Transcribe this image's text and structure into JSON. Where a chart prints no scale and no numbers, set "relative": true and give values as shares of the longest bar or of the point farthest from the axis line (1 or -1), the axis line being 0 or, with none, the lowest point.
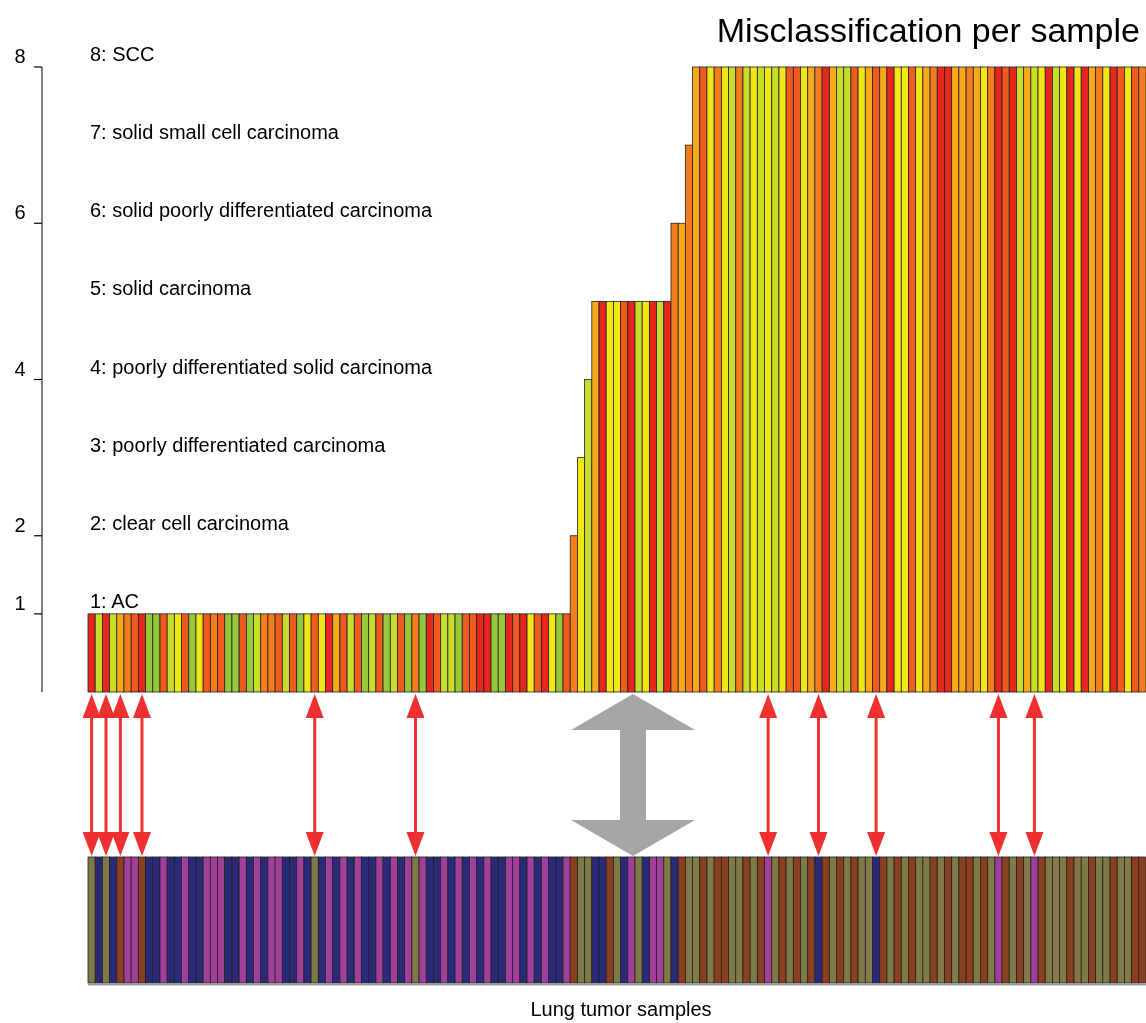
{
  "chart_data": [
    {
      "type": "bar",
      "title": "Misclassification per sample",
      "categories": [
        null,
        null,
        null,
        null,
        null,
        null,
        null,
        null,
        null,
        null,
        null,
        null,
        null,
        null,
        null,
        null,
        null,
        null,
        null,
        null,
        null,
        null,
        null,
        null,
        null,
        null,
        null,
        null,
        null,
        null,
        null,
        null,
        null,
        null,
        null,
        null,
        null,
        null,
        null,
        null,
        null,
        null,
        null,
        null,
        null,
        null,
        null,
        null,
        null,
        null,
        null,
        null,
        null,
        null,
        null,
        null,
        null,
        null,
        null,
        null,
        null,
        null,
        null,
        null,
        null,
        null,
        null,
        null,
        null,
        null,
        null,
        null,
        null,
        null,
        null,
        null,
        null,
        null,
        null,
        null,
        null,
        null,
        null,
        null,
        null,
        null,
        null,
        null,
        null,
        null,
        null,
        null,
        null,
        null,
        null,
        null,
        null,
        null,
        null,
        null,
        null,
        null,
        null,
        null,
        null,
        null,
        null,
        null,
        null,
        null,
        null,
        null,
        null,
        null,
        null,
        null,
        null,
        null,
        null,
        null,
        null,
        null,
        null,
        null,
        null,
        null,
        null,
        null,
        null,
        null,
        null,
        null,
        null,
        null,
        null,
        null,
        null,
        null,
        null,
        null,
        null,
        null,
        null,
        null,
        null,
        null,
        null
      ],
      "values": [
        1,
        1,
        1,
        1,
        1,
        1,
        1,
        1,
        1,
        1,
        1,
        1,
        1,
        1,
        1,
        1,
        1,
        1,
        1,
        1,
        1,
        1,
        1,
        1,
        1,
        1,
        1,
        1,
        1,
        1,
        1,
        1,
        1,
        1,
        1,
        1,
        1,
        1,
        1,
        1,
        1,
        1,
        1,
        1,
        1,
        1,
        1,
        1,
        1,
        1,
        1,
        1,
        1,
        1,
        1,
        1,
        1,
        1,
        1,
        1,
        1,
        1,
        1,
        1,
        1,
        1,
        1,
        2,
        3,
        4,
        5,
        5,
        5,
        5,
        5,
        5,
        5,
        5,
        5,
        5,
        5,
        6,
        6,
        7,
        8,
        8,
        8,
        8,
        8,
        8,
        8,
        8,
        8,
        8,
        8,
        8,
        8,
        8,
        8,
        8,
        8,
        8,
        8,
        8,
        8,
        8,
        8,
        8,
        8,
        8,
        8,
        8,
        8,
        8,
        8,
        8,
        8,
        8,
        8,
        8,
        8,
        8,
        8,
        8,
        8,
        8,
        8,
        8,
        8,
        8,
        8,
        8,
        8,
        8,
        8,
        8,
        8,
        8,
        8,
        8,
        8,
        8,
        8,
        8,
        8,
        8,
        8
      ],
      "colors": [
        "#e8261e",
        "#c8dc2a",
        "#e8261e",
        "#c8dc2a",
        "#f8a91a",
        "#f57d1e",
        "#f05a1e",
        "#e8261e",
        "#96c83c",
        "#96c83c",
        "#f05a1e",
        "#c8dc2a",
        "#f2e614",
        "#f05a1e",
        "#96c83c",
        "#f2e614",
        "#f05a1e",
        "#f57d1e",
        "#f05a1e",
        "#96c83c",
        "#96c83c",
        "#f05a1e",
        "#96c83c",
        "#c8dc2a",
        "#f57d1e",
        "#f57d1e",
        "#f05a1e",
        "#c8dc2a",
        "#f05a1e",
        "#96c83c",
        "#f2e614",
        "#f05a1e",
        "#f2e614",
        "#e8261e",
        "#f8a91a",
        "#f05a1e",
        "#c8dc2a",
        "#f05a1e",
        "#96c83c",
        "#c8dc2a",
        "#f05a1e",
        "#96c83c",
        "#c8dc2a",
        "#f05a1e",
        "#96c83c",
        "#f57d1e",
        "#96c83c",
        "#e8261e",
        "#f05a1e",
        "#c8dc2a",
        "#c8dc2a",
        "#96c83c",
        "#f05a1e",
        "#f05a1e",
        "#e8261e",
        "#e8261e",
        "#96c83c",
        "#96c83c",
        "#e8261e",
        "#f05a1e",
        "#e8261e",
        "#f2e614",
        "#f05a1e",
        "#e8261e",
        "#f2e614",
        "#96c83c",
        "#f05a1e",
        "#f57d1e",
        "#f2e614",
        "#c8dc2a",
        "#f8a91a",
        "#e8261e",
        "#f2e614",
        "#f2e614",
        "#f05a1e",
        "#e8261e",
        "#c8dc2a",
        "#f2e614",
        "#e8261e",
        "#c8dc2a",
        "#e8261e",
        "#f57d1e",
        "#f8a91a",
        "#f57d1e",
        "#f8a91a",
        "#f05a1e",
        "#f2e614",
        "#f57d1e",
        "#f2e614",
        "#c8dc2a",
        "#f57d1e",
        "#c8dc2a",
        "#f2e614",
        "#c8dc2a",
        "#f2e614",
        "#c8dc2a",
        "#f2e614",
        "#f05a1e",
        "#f05a1e",
        "#f2e614",
        "#f8a91a",
        "#f57d1e",
        "#e8261e",
        "#f8a91a",
        "#c8dc2a",
        "#c8dc2a",
        "#f05a1e",
        "#f2e614",
        "#f8a91a",
        "#f05a1e",
        "#f8a91a",
        "#e8261e",
        "#f2e614",
        "#f2e614",
        "#f05a1e",
        "#f2e614",
        "#f8a91a",
        "#f57d1e",
        "#e8261e",
        "#e8261e",
        "#f8a91a",
        "#f8a91a",
        "#f57d1e",
        "#f8a91a",
        "#f2e614",
        "#f57d1e",
        "#e8261e",
        "#f05a1e",
        "#e8261e",
        "#c8dc2a",
        "#f8a91a",
        "#c8dc2a",
        "#f2e614",
        "#e8261e",
        "#c8dc2a",
        "#f2e614",
        "#e8261e",
        "#f2e614",
        "#e8261e",
        "#f8a91a",
        "#f57d1e",
        "#f2e614",
        "#e8261e",
        "#f05a1e",
        "#f2e614",
        "#f05a1e",
        "#f57d1e"
      ],
      "ylim": [
        0,
        8
      ],
      "yticks": [
        1,
        2,
        4,
        6,
        8
      ],
      "annotations": [
        "8: SCC",
        "7: solid small cell carcinoma",
        "6: solid poorly differentiated carcinoma",
        "5: solid carcinoma",
        "4: poorly differentiated solid carcinoma",
        "3: poorly differentiated carcinoma",
        "2: clear cell carcinoma",
        "1: AC"
      ]
    },
    {
      "type": "bar",
      "relative": true,
      "xlabel": "Lung tumor samples",
      "categories": [
        null,
        null,
        null,
        null,
        null,
        null,
        null,
        null,
        null,
        null,
        null,
        null,
        null,
        null,
        null,
        null,
        null,
        null,
        null,
        null,
        null,
        null,
        null,
        null,
        null,
        null,
        null,
        null,
        null,
        null,
        null,
        null,
        null,
        null,
        null,
        null,
        null,
        null,
        null,
        null,
        null,
        null,
        null,
        null,
        null,
        null,
        null,
        null,
        null,
        null,
        null,
        null,
        null,
        null,
        null,
        null,
        null,
        null,
        null,
        null,
        null,
        null,
        null,
        null,
        null,
        null,
        null,
        null,
        null,
        null,
        null,
        null,
        null,
        null,
        null,
        null,
        null,
        null,
        null,
        null,
        null,
        null,
        null,
        null,
        null,
        null,
        null,
        null,
        null,
        null,
        null,
        null,
        null,
        null,
        null,
        null,
        null,
        null,
        null,
        null,
        null,
        null,
        null,
        null,
        null,
        null,
        null,
        null,
        null,
        null,
        null,
        null,
        null,
        null,
        null,
        null,
        null,
        null,
        null,
        null,
        null,
        null,
        null,
        null,
        null,
        null,
        null,
        null,
        null,
        null,
        null,
        null,
        null,
        null,
        null,
        null,
        null,
        null,
        null,
        null,
        null,
        null,
        null,
        null,
        null,
        null,
        null
      ],
      "values": [
        1,
        1,
        1,
        1,
        1,
        1,
        1,
        1,
        1,
        1,
        1,
        1,
        1,
        1,
        1,
        1,
        1,
        1,
        1,
        1,
        1,
        1,
        1,
        1,
        1,
        1,
        1,
        1,
        1,
        1,
        1,
        1,
        1,
        1,
        1,
        1,
        1,
        1,
        1,
        1,
        1,
        1,
        1,
        1,
        1,
        1,
        1,
        1,
        1,
        1,
        1,
        1,
        1,
        1,
        1,
        1,
        1,
        1,
        1,
        1,
        1,
        1,
        1,
        1,
        1,
        1,
        1,
        1,
        1,
        1,
        1,
        1,
        1,
        1,
        1,
        1,
        1,
        1,
        1,
        1,
        1,
        1,
        1,
        1,
        1,
        1,
        1,
        1,
        1,
        1,
        1,
        1,
        1,
        1,
        1,
        1,
        1,
        1,
        1,
        1,
        1,
        1,
        1,
        1,
        1,
        1,
        1,
        1,
        1,
        1,
        1,
        1,
        1,
        1,
        1,
        1,
        1,
        1,
        1,
        1,
        1,
        1,
        1,
        1,
        1,
        1,
        1,
        1,
        1,
        1,
        1,
        1,
        1,
        1,
        1,
        1,
        1,
        1,
        1,
        1,
        1,
        1,
        1,
        1,
        1,
        1,
        1
      ],
      "colors": [
        "#807a48",
        "#2a2a78",
        "#807a48",
        "#2a2a78",
        "#8a4020",
        "#a0409a",
        "#a0409a",
        "#8a4020",
        "#2a2a78",
        "#2a2a78",
        "#a0409a",
        "#2a2a78",
        "#2a2a78",
        "#a0409a",
        "#2a2a78",
        "#2a2a78",
        "#a0409a",
        "#a0409a",
        "#a0409a",
        "#2a2a78",
        "#2a2a78",
        "#a0409a",
        "#2a2a78",
        "#a0409a",
        "#2a2a78",
        "#a0409a",
        "#a0409a",
        "#2a2a78",
        "#2a2a78",
        "#a0409a",
        "#2a2a78",
        "#807a48",
        "#2a2a78",
        "#a0409a",
        "#2a2a78",
        "#a0409a",
        "#2a2a78",
        "#a0409a",
        "#2a2a78",
        "#2a2a78",
        "#a0409a",
        "#2a2a78",
        "#a0409a",
        "#2a2a78",
        "#a0409a",
        "#807a48",
        "#a0409a",
        "#2a2a78",
        "#2a2a78",
        "#a0409a",
        "#2a2a78",
        "#a0409a",
        "#2a2a78",
        "#a0409a",
        "#2a2a78",
        "#a0409a",
        "#2a2a78",
        "#2a2a78",
        "#a0409a",
        "#a0409a",
        "#2a2a78",
        "#a0409a",
        "#2a2a78",
        "#a0409a",
        "#2a2a78",
        "#2a2a78",
        "#a0409a",
        "#8a4020",
        "#807a48",
        "#807a48",
        "#2a2a78",
        "#2a2a78",
        "#8a4020",
        "#807a48",
        "#2a2a78",
        "#a0409a",
        "#807a48",
        "#2a2a78",
        "#a0409a",
        "#a0409a",
        "#807a48",
        "#2a2a78",
        "#8a4020",
        "#807a48",
        "#807a48",
        "#8a4020",
        "#807a48",
        "#8a4020",
        "#8a4020",
        "#807a48",
        "#807a48",
        "#8a4020",
        "#807a48",
        "#8a4020",
        "#a0409a",
        "#807a48",
        "#8a4020",
        "#807a48",
        "#8a4020",
        "#807a48",
        "#8a4020",
        "#2a2a78",
        "#8a4020",
        "#807a48",
        "#8a4020",
        "#807a48",
        "#8a4020",
        "#807a48",
        "#807a48",
        "#2a2a78",
        "#8a4020",
        "#807a48",
        "#8a4020",
        "#807a48",
        "#8a4020",
        "#807a48",
        "#807a48",
        "#8a4020",
        "#807a48",
        "#8a4020",
        "#807a48",
        "#8a4020",
        "#8a4020",
        "#807a48",
        "#8a4020",
        "#807a48",
        "#a0409a",
        "#8a4020",
        "#807a48",
        "#8a4020",
        "#807a48",
        "#a0409a",
        "#8a4020",
        "#807a48",
        "#807a48",
        "#807a48",
        "#8a4020",
        "#807a48",
        "#807a48",
        "#8a4020",
        "#807a48",
        "#807a48",
        "#8a4020",
        "#807a48",
        "#807a48",
        "#8a4020",
        "#8a4020"
      ]
    }
  ]
}
